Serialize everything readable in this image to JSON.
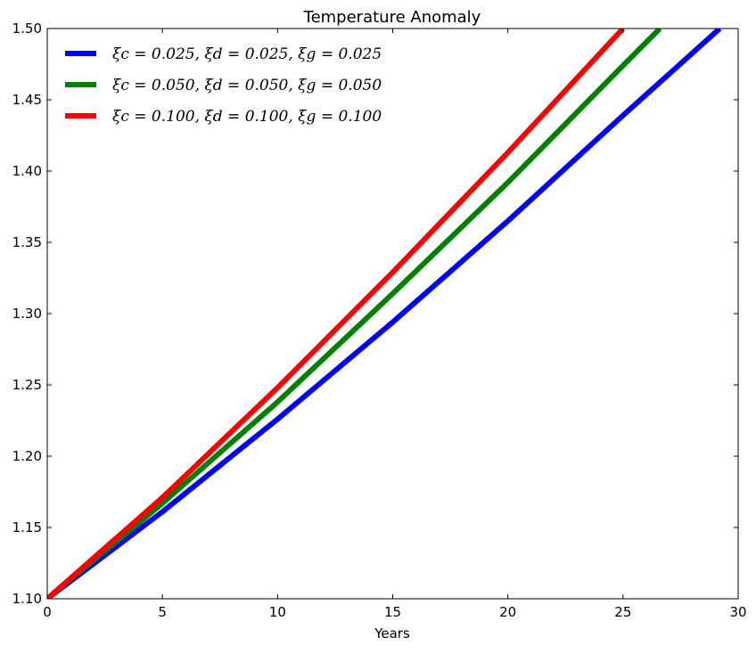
{
  "chart_data": {
    "type": "line",
    "title": "Temperature Anomaly",
    "xlabel": "Years",
    "ylabel": "",
    "xlim": [
      0,
      30
    ],
    "ylim": [
      1.1,
      1.5
    ],
    "xticks": [
      "0",
      "5",
      "10",
      "15",
      "20",
      "25",
      "30"
    ],
    "yticks": [
      "1.10",
      "1.15",
      "1.20",
      "1.25",
      "1.30",
      "1.35",
      "1.40",
      "1.45",
      "1.50"
    ],
    "grid": false,
    "legend_position": "top-left",
    "series": [
      {
        "name": "ξc = 0.025, ξd = 0.025, ξg = 0.025",
        "color": "#0000ff",
        "x": [
          0,
          5,
          10,
          15,
          20,
          25,
          29.2
        ],
        "y": [
          1.1,
          1.161,
          1.226,
          1.294,
          1.365,
          1.439,
          1.5
        ]
      },
      {
        "name": "ξc = 0.050, ξd = 0.050, ξg = 0.050",
        "color": "#008000",
        "x": [
          0,
          5,
          10,
          15,
          20,
          25,
          26.6
        ],
        "y": [
          1.1,
          1.167,
          1.238,
          1.314,
          1.392,
          1.474,
          1.5
        ]
      },
      {
        "name": "ξc = 0.100, ξd = 0.100, ξg = 0.100",
        "color": "#ff0000",
        "x": [
          0,
          5,
          10,
          15,
          20,
          25
        ],
        "y": [
          1.1,
          1.171,
          1.248,
          1.329,
          1.413,
          1.5
        ]
      }
    ]
  }
}
